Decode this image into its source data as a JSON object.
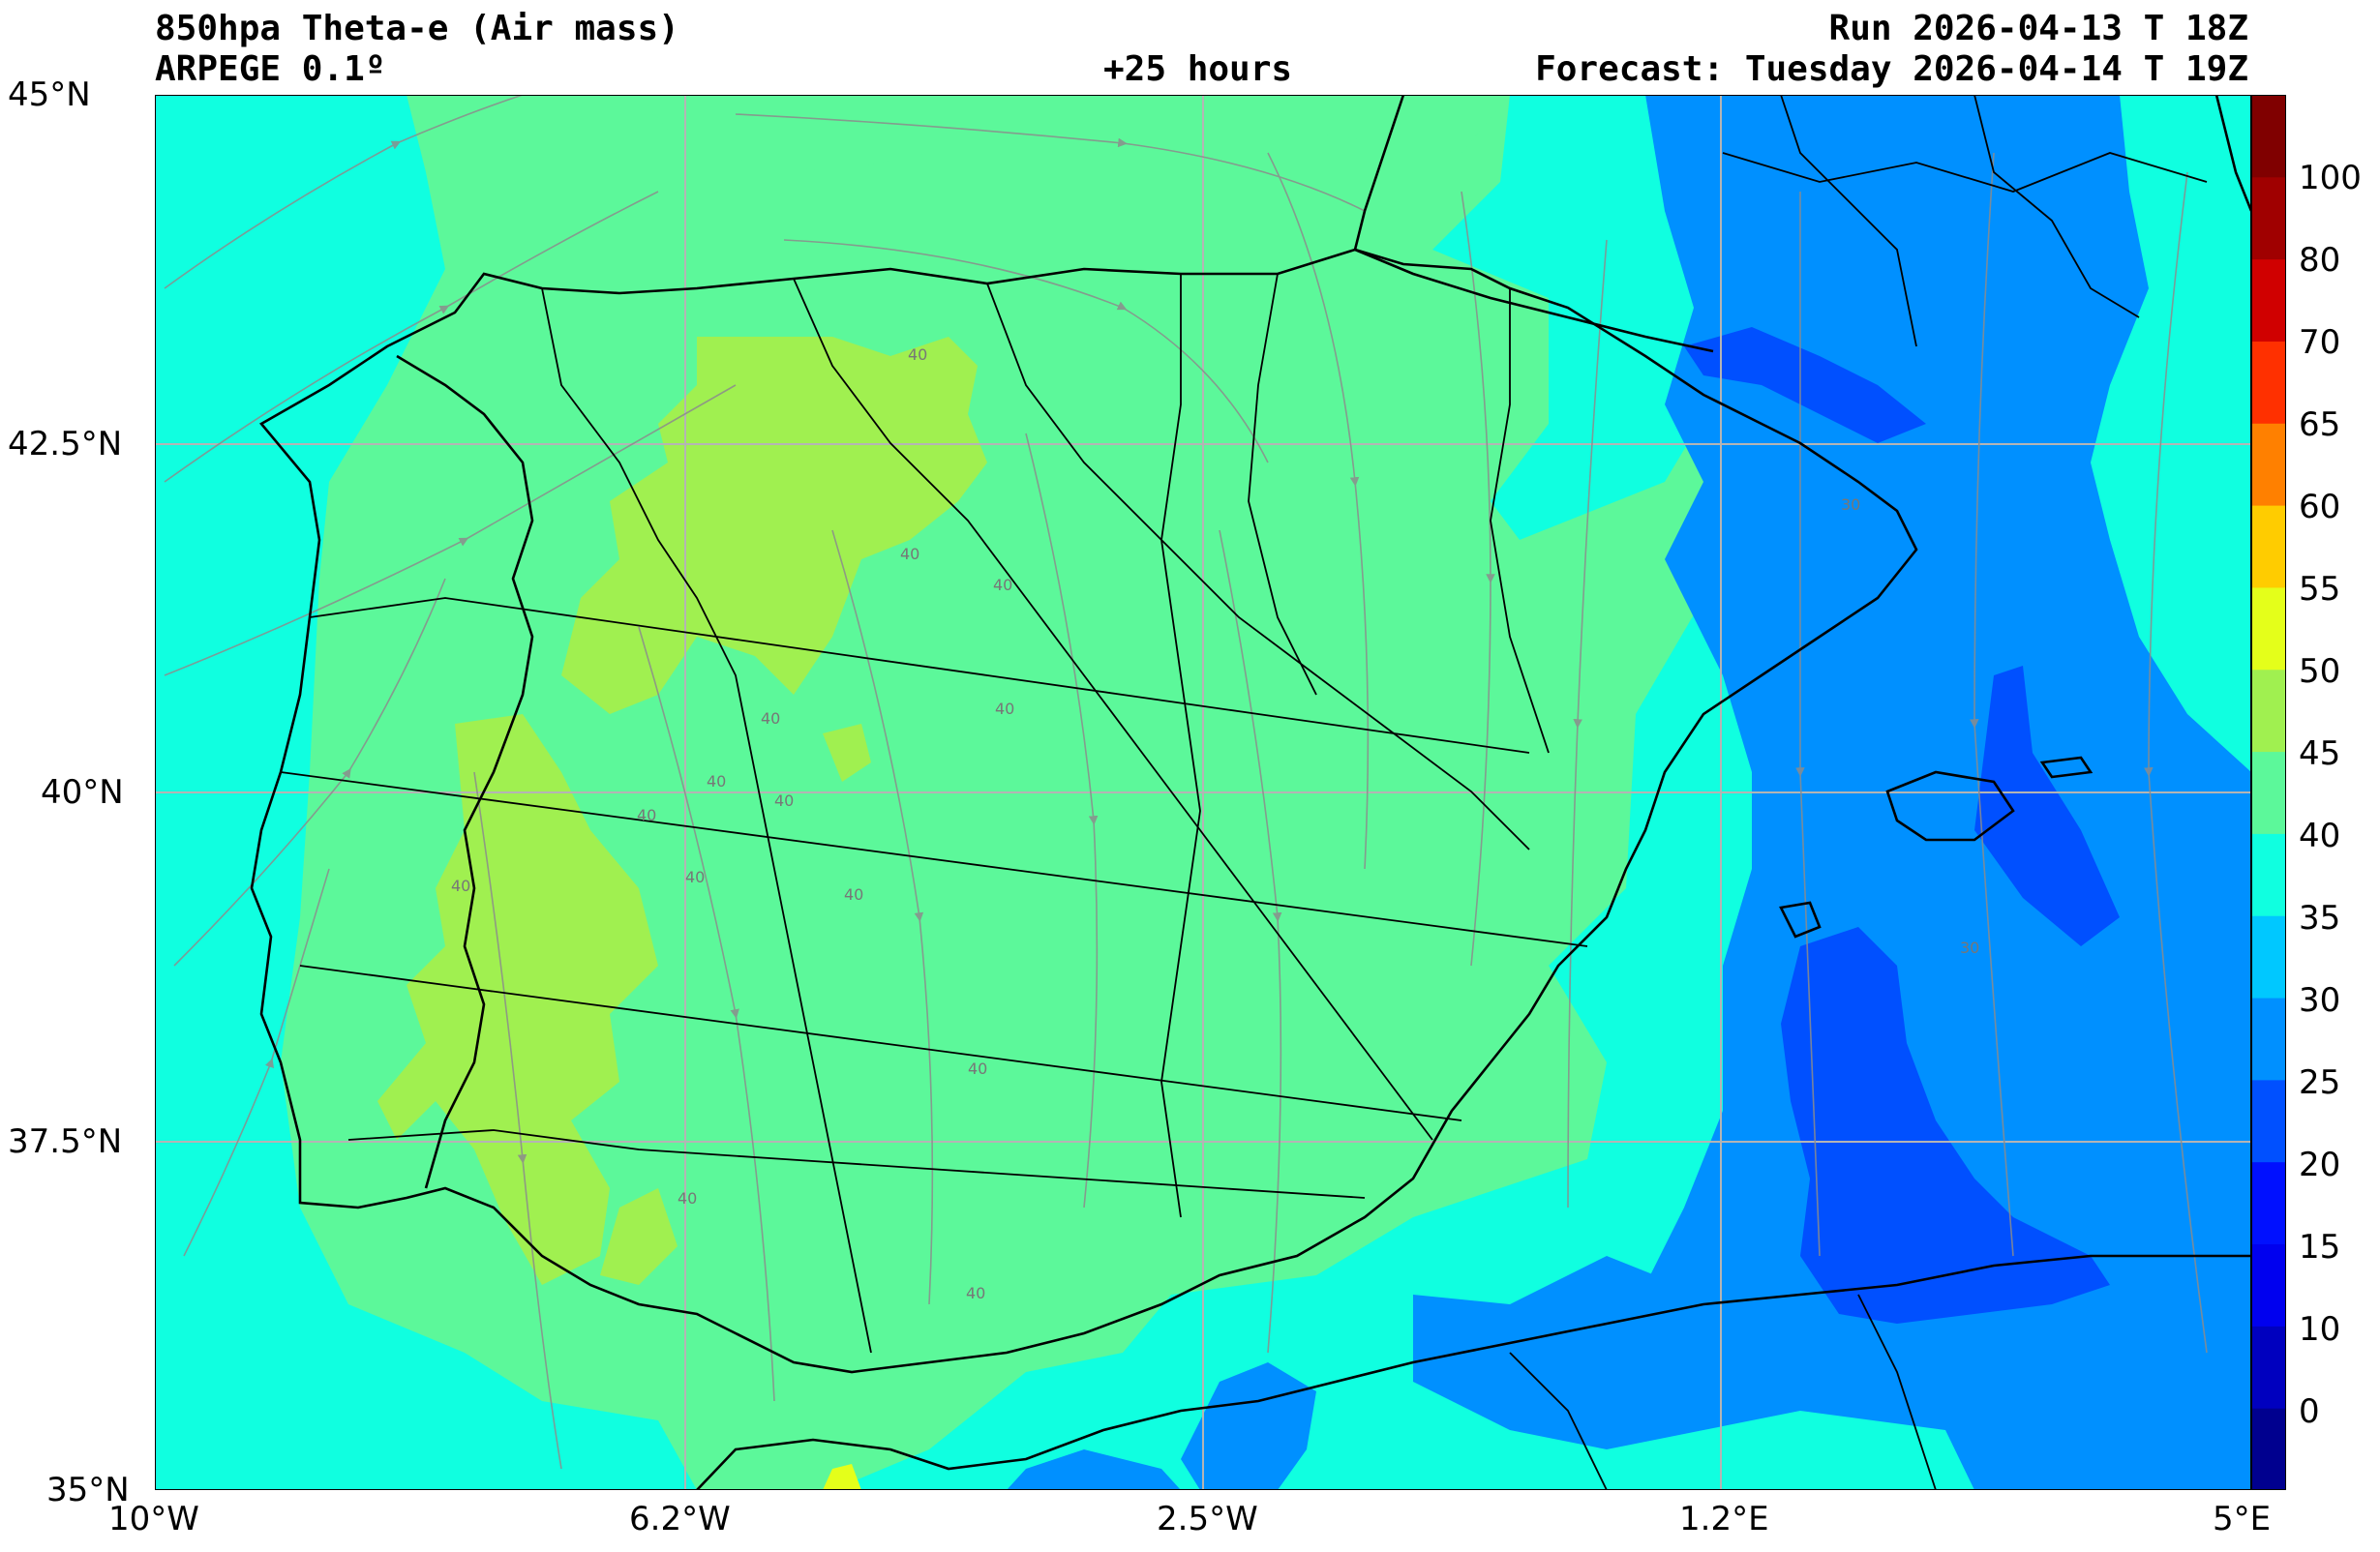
{
  "header": {
    "title_left": "850hpa Theta-e (Air mass)",
    "model": "ARPEGE 0.1º",
    "lead_time": "+25 hours",
    "run": "Run 2026-04-13 T 18Z",
    "forecast": "Forecast: Tuesday 2026-04-14 T 19Z"
  },
  "axes": {
    "lat_labels": [
      "45°N",
      "42.5°N",
      "40°N",
      "37.5°N",
      "35°N"
    ],
    "lon_labels": [
      "10°W",
      "6.2°W",
      "2.5°W",
      "1.2°E",
      "5°E"
    ],
    "lat_range": [
      35,
      45
    ],
    "lon_range": [
      -10,
      5
    ],
    "grid": true
  },
  "colorbar": {
    "labels": [
      "100",
      "80",
      "70",
      "65",
      "60",
      "55",
      "50",
      "45",
      "40",
      "35",
      "30",
      "25",
      "20",
      "15",
      "10",
      "0"
    ],
    "colors_bottom_to_top": [
      "#00008f",
      "#0000bf",
      "#0000ef",
      "#0010ff",
      "#0050ff",
      "#0090ff",
      "#00c8ff",
      "#10ffe0",
      "#5cf89a",
      "#a0f050",
      "#e4ff1a",
      "#ffcc00",
      "#ff8000",
      "#ff3000",
      "#d00000",
      "#a00000",
      "#800000"
    ]
  },
  "contour_labels": [
    "40",
    "40",
    "40",
    "40",
    "40",
    "40",
    "40",
    "40",
    "40",
    "40",
    "40",
    "40",
    "40",
    "40",
    "30",
    "30"
  ],
  "colors": {
    "sea_cool": "#10ffe0",
    "land_warm": "#5cf89a",
    "hot": "#a0f050",
    "cold": "#0090ff",
    "coldest": "#0050ff",
    "border": "#000000",
    "streamline": "#8c8c8c",
    "grid": "#b4b4b4"
  }
}
